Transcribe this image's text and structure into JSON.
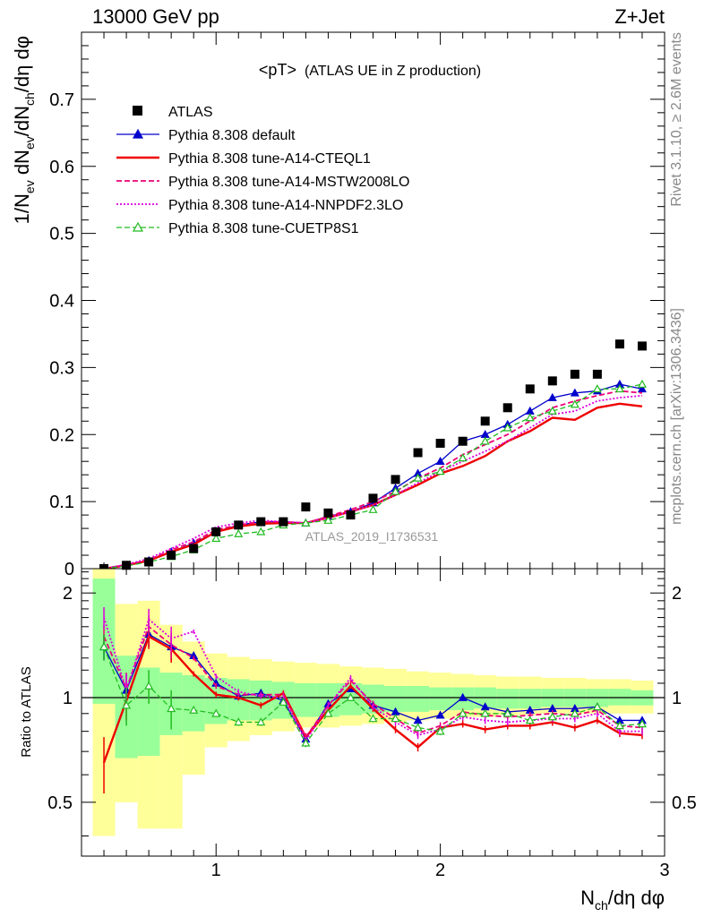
{
  "header": {
    "left": "13000 GeV pp",
    "right": "Z+Jet"
  },
  "side": {
    "rivet": "Rivet 3.1.10, ≥ 2.6M events",
    "mcplots": "mcplots.cern.ch [arXiv:1306.3436]"
  },
  "chart_data": {
    "type": "line",
    "title": "<pT>",
    "title_suffix": "(ATLAS UE in Z production)",
    "watermark": "ATLAS_2019_I1736531",
    "ylabel_main": "1/N",
    "ylabel_main_sub1": "ev",
    "ylabel_main_mid": " dN",
    "ylabel_main_sub2": "ev",
    "ylabel_main_mid2": "/dN",
    "ylabel_main_sub3": "ch",
    "ylabel_main_tail": "/dη dφ",
    "ylabel_ratio": "Ratio to ATLAS",
    "xlabel": "N",
    "xlabel_sub": "ch",
    "xlabel_tail": "/dη dφ",
    "xlim": [
      0.4,
      3.0
    ],
    "ylim_main": [
      0,
      0.8
    ],
    "ylim_ratio": [
      0.35,
      2.35
    ],
    "x_ticks": [
      "1",
      "2",
      "3"
    ],
    "y_ticks_main": [
      "0",
      "0.1",
      "0.2",
      "0.3",
      "0.4",
      "0.5",
      "0.6",
      "0.7"
    ],
    "y_ticks_ratio": [
      "0.5",
      "1",
      "2"
    ],
    "x": [
      0.5,
      0.6,
      0.7,
      0.8,
      0.9,
      1.0,
      1.1,
      1.2,
      1.3,
      1.4,
      1.5,
      1.6,
      1.7,
      1.8,
      1.9,
      2.0,
      2.1,
      2.2,
      2.3,
      2.4,
      2.5,
      2.6,
      2.7,
      2.8,
      2.9
    ],
    "data": {
      "name": "ATLAS",
      "values": [
        0.0,
        0.005,
        0.01,
        0.02,
        0.03,
        0.055,
        0.065,
        0.07,
        0.07,
        0.092,
        0.083,
        0.08,
        0.105,
        0.133,
        0.173,
        0.187,
        0.19,
        0.22,
        0.24,
        0.268,
        0.28,
        0.29,
        0.29,
        0.335,
        0.332
      ],
      "band_inner": [
        [
          0.96,
          2.2
        ],
        [
          0.67,
          1.32
        ],
        [
          0.68,
          1.22
        ],
        [
          0.78,
          1.18
        ],
        [
          0.8,
          1.16
        ],
        [
          0.84,
          1.14
        ],
        [
          0.86,
          1.13
        ],
        [
          0.86,
          1.12
        ],
        [
          0.87,
          1.11
        ],
        [
          0.88,
          1.1
        ],
        [
          0.88,
          1.1
        ],
        [
          0.89,
          1.1
        ],
        [
          0.9,
          1.09
        ],
        [
          0.91,
          1.08
        ],
        [
          0.91,
          1.08
        ],
        [
          0.92,
          1.07
        ],
        [
          0.92,
          1.07
        ],
        [
          0.93,
          1.07
        ],
        [
          0.93,
          1.06
        ],
        [
          0.93,
          1.06
        ],
        [
          0.94,
          1.06
        ],
        [
          0.94,
          1.06
        ],
        [
          0.94,
          1.06
        ],
        [
          0.95,
          1.06
        ],
        [
          0.95,
          1.05
        ]
      ],
      "band_outer": [
        [
          0.4,
          2.35
        ],
        [
          0.5,
          1.86
        ],
        [
          0.42,
          1.9
        ],
        [
          0.42,
          1.62
        ],
        [
          0.6,
          1.45
        ],
        [
          0.72,
          1.34
        ],
        [
          0.75,
          1.31
        ],
        [
          0.78,
          1.29
        ],
        [
          0.8,
          1.27
        ],
        [
          0.82,
          1.26
        ],
        [
          0.82,
          1.25
        ],
        [
          0.83,
          1.23
        ],
        [
          0.84,
          1.22
        ],
        [
          0.85,
          1.21
        ],
        [
          0.86,
          1.19
        ],
        [
          0.87,
          1.18
        ],
        [
          0.88,
          1.17
        ],
        [
          0.88,
          1.16
        ],
        [
          0.89,
          1.15
        ],
        [
          0.89,
          1.15
        ],
        [
          0.9,
          1.14
        ],
        [
          0.9,
          1.14
        ],
        [
          0.9,
          1.13
        ],
        [
          0.9,
          1.13
        ],
        [
          0.9,
          1.12
        ]
      ]
    },
    "series": [
      {
        "name": "Pythia 8.308 default",
        "color": "#0000cc",
        "dash": "",
        "marker": "tri-filled",
        "width": 1.3,
        "values": [
          0.0,
          0.005,
          0.012,
          0.025,
          0.038,
          0.055,
          0.065,
          0.07,
          0.07,
          0.068,
          0.078,
          0.085,
          0.098,
          0.12,
          0.142,
          0.16,
          0.19,
          0.2,
          0.215,
          0.235,
          0.255,
          0.262,
          0.265,
          0.275,
          0.268
        ],
        "ratio": [
          1.4,
          1.05,
          1.52,
          1.4,
          1.32,
          1.1,
          1.01,
          1.03,
          0.98,
          0.76,
          0.96,
          1.06,
          0.95,
          0.91,
          0.86,
          0.89,
          1.0,
          0.94,
          0.91,
          0.92,
          0.93,
          0.93,
          0.94,
          0.86,
          0.86
        ]
      },
      {
        "name": "Pythia 8.308 tune-A14-CTEQL1",
        "color": "#ee0000",
        "dash": "",
        "marker": "none",
        "width": 2.4,
        "values": [
          0.0,
          0.005,
          0.012,
          0.025,
          0.036,
          0.055,
          0.063,
          0.067,
          0.068,
          0.068,
          0.076,
          0.085,
          0.095,
          0.11,
          0.125,
          0.142,
          0.153,
          0.168,
          0.19,
          0.205,
          0.225,
          0.222,
          0.24,
          0.246,
          0.242
        ],
        "ratio": [
          0.65,
          0.98,
          1.5,
          1.38,
          1.17,
          1.02,
          1.0,
          0.95,
          1.03,
          0.77,
          0.92,
          1.08,
          0.93,
          0.81,
          0.72,
          0.82,
          0.84,
          0.81,
          0.83,
          0.83,
          0.85,
          0.82,
          0.86,
          0.79,
          0.78
        ]
      },
      {
        "name": "Pythia 8.308 tune-A14-MSTW2008LO",
        "color": "#ee0077",
        "dash": "6,3",
        "marker": "none",
        "width": 1.8,
        "values": [
          0.0,
          0.006,
          0.013,
          0.028,
          0.04,
          0.058,
          0.065,
          0.07,
          0.07,
          0.068,
          0.078,
          0.088,
          0.1,
          0.115,
          0.135,
          0.15,
          0.17,
          0.185,
          0.2,
          0.22,
          0.24,
          0.25,
          0.258,
          0.265,
          0.262
        ],
        "ratio": [
          1.5,
          1.06,
          1.6,
          1.42,
          1.3,
          1.08,
          1.02,
          1.02,
          1.02,
          0.77,
          0.95,
          1.12,
          0.96,
          0.87,
          0.79,
          0.83,
          0.91,
          0.89,
          0.88,
          0.89,
          0.9,
          0.89,
          0.92,
          0.83,
          0.82
        ]
      },
      {
        "name": "Pythia 8.308 tune-A14-NNPDF2.3LO",
        "color": "#dd00dd",
        "dash": "2,2",
        "marker": "none",
        "width": 1.8,
        "values": [
          0.0,
          0.006,
          0.015,
          0.03,
          0.045,
          0.062,
          0.068,
          0.072,
          0.07,
          0.068,
          0.076,
          0.085,
          0.095,
          0.11,
          0.128,
          0.145,
          0.16,
          0.175,
          0.19,
          0.21,
          0.23,
          0.235,
          0.25,
          0.255,
          0.258
        ],
        "ratio": [
          1.7,
          1.05,
          1.68,
          1.48,
          1.55,
          1.15,
          1.04,
          1.01,
          1.0,
          0.75,
          0.95,
          1.14,
          0.94,
          0.85,
          0.78,
          0.81,
          0.88,
          0.86,
          0.85,
          0.86,
          0.87,
          0.87,
          0.9,
          0.8,
          0.8
        ]
      },
      {
        "name": "Pythia 8.308 tune-CUETP8S1",
        "color": "#22bb22",
        "dash": "6,3",
        "marker": "tri-open",
        "width": 1.3,
        "values": [
          0.0,
          0.004,
          0.01,
          0.018,
          0.028,
          0.045,
          0.052,
          0.055,
          0.065,
          0.068,
          0.072,
          0.08,
          0.088,
          0.115,
          0.135,
          0.145,
          0.165,
          0.19,
          0.21,
          0.225,
          0.235,
          0.245,
          0.268,
          0.268,
          0.275
        ],
        "ratio": [
          1.4,
          0.95,
          1.08,
          0.93,
          0.92,
          0.9,
          0.85,
          0.85,
          0.97,
          0.74,
          0.9,
          1.0,
          0.87,
          0.87,
          0.82,
          0.8,
          0.9,
          0.9,
          0.9,
          0.86,
          0.88,
          0.9,
          0.94,
          0.83,
          0.84
        ]
      }
    ]
  }
}
